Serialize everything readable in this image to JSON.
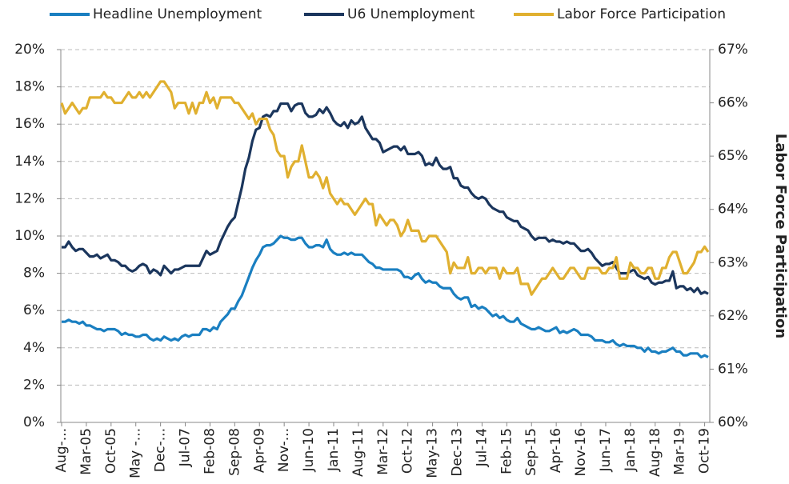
{
  "chart_data": {
    "type": "line",
    "y2_label": "Labor Force Participation",
    "categories": [
      "Aug-...",
      null,
      null,
      null,
      null,
      null,
      null,
      "Mar-05",
      null,
      null,
      null,
      null,
      null,
      null,
      "Oct-05",
      null,
      null,
      null,
      null,
      null,
      null,
      "May -...",
      null,
      null,
      null,
      null,
      null,
      null,
      "Dec-...",
      null,
      null,
      null,
      null,
      null,
      null,
      "Jul-07",
      null,
      null,
      null,
      null,
      null,
      null,
      "Feb-08",
      null,
      null,
      null,
      null,
      null,
      null,
      "Sep-08",
      null,
      null,
      null,
      null,
      null,
      null,
      "Apr-09",
      null,
      null,
      null,
      null,
      null,
      null,
      "Nov-...",
      null,
      null,
      null,
      null,
      null,
      null,
      "Jun-10",
      null,
      null,
      null,
      null,
      null,
      null,
      "Jan-11",
      null,
      null,
      null,
      null,
      null,
      null,
      "Aug-11",
      null,
      null,
      null,
      null,
      null,
      null,
      "Mar-12",
      null,
      null,
      null,
      null,
      null,
      null,
      "Oct-12",
      null,
      null,
      null,
      null,
      null,
      null,
      "May-13",
      null,
      null,
      null,
      null,
      null,
      null,
      "Dec-13",
      null,
      null,
      null,
      null,
      null,
      null,
      "Jul-14",
      null,
      null,
      null,
      null,
      null,
      null,
      "Feb-15",
      null,
      null,
      null,
      null,
      null,
      null,
      "Sep-15",
      null,
      null,
      null,
      null,
      null,
      null,
      "Apr-16",
      null,
      null,
      null,
      null,
      null,
      null,
      "Nov-16",
      null,
      null,
      null,
      null,
      null,
      null,
      "Jun-17",
      null,
      null,
      null,
      null,
      null,
      null,
      "Jan-18",
      null,
      null,
      null,
      null,
      null,
      null,
      "Aug-18",
      null,
      null,
      null,
      null,
      null,
      null,
      "Mar-19",
      null,
      null,
      null,
      null,
      null,
      null,
      "Oct-19",
      null
    ],
    "series": [
      {
        "name": "Headline Unemployment",
        "color": "#1a7fc1",
        "values": [
          5.4,
          5.4,
          5.5,
          5.4,
          5.4,
          5.3,
          5.4,
          5.2,
          5.2,
          5.1,
          5.0,
          5.0,
          4.9,
          5.0,
          5.0,
          5.0,
          4.9,
          4.7,
          4.8,
          4.7,
          4.7,
          4.6,
          4.6,
          4.7,
          4.7,
          4.5,
          4.4,
          4.5,
          4.4,
          4.6,
          4.5,
          4.4,
          4.5,
          4.4,
          4.6,
          4.7,
          4.6,
          4.7,
          4.7,
          4.7,
          5.0,
          5.0,
          4.9,
          5.1,
          5.0,
          5.4,
          5.6,
          5.8,
          6.1,
          6.1,
          6.5,
          6.8,
          7.3,
          7.8,
          8.3,
          8.7,
          9.0,
          9.4,
          9.5,
          9.5,
          9.6,
          9.8,
          10.0,
          9.9,
          9.9,
          9.8,
          9.8,
          9.9,
          9.9,
          9.6,
          9.4,
          9.4,
          9.5,
          9.5,
          9.4,
          9.8,
          9.3,
          9.1,
          9.0,
          9.0,
          9.1,
          9.0,
          9.1,
          9.0,
          9.0,
          9.0,
          8.8,
          8.6,
          8.5,
          8.3,
          8.3,
          8.2,
          8.2,
          8.2,
          8.2,
          8.2,
          8.1,
          7.8,
          7.8,
          7.7,
          7.9,
          8.0,
          7.7,
          7.5,
          7.6,
          7.5,
          7.5,
          7.3,
          7.2,
          7.2,
          7.2,
          6.9,
          6.7,
          6.6,
          6.7,
          6.7,
          6.2,
          6.3,
          6.1,
          6.2,
          6.1,
          5.9,
          5.7,
          5.8,
          5.6,
          5.7,
          5.5,
          5.4,
          5.4,
          5.6,
          5.3,
          5.2,
          5.1,
          5.0,
          5.0,
          5.1,
          5.0,
          4.9,
          4.9,
          5.0,
          5.1,
          4.8,
          4.9,
          4.8,
          4.9,
          5.0,
          4.9,
          4.7,
          4.7,
          4.7,
          4.6,
          4.4,
          4.4,
          4.4,
          4.3,
          4.3,
          4.4,
          4.2,
          4.1,
          4.2,
          4.1,
          4.1,
          4.1,
          4.0,
          4.0,
          3.8,
          4.0,
          3.8,
          3.8,
          3.7,
          3.8,
          3.8,
          3.9,
          4.0,
          3.8,
          3.8,
          3.6,
          3.6,
          3.7,
          3.7,
          3.7,
          3.5,
          3.6,
          3.5
        ]
      },
      {
        "name": "U6 Unemployment",
        "color": "#1b365d",
        "values": [
          9.4,
          9.4,
          9.7,
          9.4,
          9.2,
          9.3,
          9.3,
          9.1,
          8.9,
          8.9,
          9.0,
          8.8,
          8.9,
          9.0,
          8.7,
          8.7,
          8.6,
          8.4,
          8.4,
          8.2,
          8.1,
          8.2,
          8.4,
          8.5,
          8.4,
          8.0,
          8.2,
          8.1,
          7.9,
          8.4,
          8.2,
          8.0,
          8.2,
          8.2,
          8.3,
          8.4,
          8.4,
          8.4,
          8.4,
          8.4,
          8.8,
          9.2,
          9.0,
          9.1,
          9.2,
          9.7,
          10.1,
          10.5,
          10.8,
          11.0,
          11.8,
          12.6,
          13.6,
          14.2,
          15.1,
          15.7,
          15.8,
          16.4,
          16.5,
          16.4,
          16.7,
          16.7,
          17.1,
          17.1,
          17.1,
          16.7,
          17.0,
          17.1,
          17.1,
          16.6,
          16.4,
          16.4,
          16.5,
          16.8,
          16.6,
          16.9,
          16.6,
          16.2,
          16.0,
          15.9,
          16.1,
          15.8,
          16.2,
          16.0,
          16.1,
          16.4,
          15.8,
          15.5,
          15.2,
          15.2,
          15.0,
          14.5,
          14.6,
          14.7,
          14.8,
          14.8,
          14.6,
          14.8,
          14.4,
          14.4,
          14.4,
          14.5,
          14.3,
          13.8,
          13.9,
          13.8,
          14.2,
          13.8,
          13.6,
          13.6,
          13.7,
          13.1,
          13.1,
          12.7,
          12.6,
          12.6,
          12.3,
          12.1,
          12.0,
          12.1,
          12.0,
          11.7,
          11.5,
          11.4,
          11.3,
          11.3,
          11.0,
          10.9,
          10.8,
          10.8,
          10.5,
          10.4,
          10.3,
          10.0,
          9.8,
          9.9,
          9.9,
          9.9,
          9.7,
          9.8,
          9.7,
          9.7,
          9.6,
          9.7,
          9.6,
          9.6,
          9.4,
          9.2,
          9.2,
          9.3,
          9.1,
          8.8,
          8.6,
          8.4,
          8.5,
          8.5,
          8.6,
          8.3,
          8.0,
          8.0,
          8.0,
          8.1,
          8.2,
          7.9,
          7.8,
          7.7,
          7.8,
          7.5,
          7.4,
          7.5,
          7.5,
          7.6,
          7.6,
          8.1,
          7.2,
          7.3,
          7.3,
          7.1,
          7.2,
          7.0,
          7.2,
          6.9,
          7.0,
          6.9
        ]
      },
      {
        "name": "Labor Force Participation",
        "color": "#e0b030",
        "axis": "y2",
        "values": [
          66.0,
          65.8,
          65.9,
          66.0,
          65.9,
          65.8,
          65.9,
          65.9,
          66.1,
          66.1,
          66.1,
          66.1,
          66.2,
          66.1,
          66.1,
          66.0,
          66.0,
          66.0,
          66.1,
          66.2,
          66.1,
          66.1,
          66.2,
          66.1,
          66.2,
          66.1,
          66.2,
          66.3,
          66.4,
          66.4,
          66.3,
          66.2,
          65.9,
          66.0,
          66.0,
          66.0,
          65.8,
          66.0,
          65.8,
          66.0,
          66.0,
          66.2,
          66.0,
          66.1,
          65.9,
          66.1,
          66.1,
          66.1,
          66.1,
          66.0,
          66.0,
          65.9,
          65.8,
          65.7,
          65.8,
          65.6,
          65.7,
          65.7,
          65.7,
          65.5,
          65.4,
          65.1,
          65.0,
          65.0,
          64.6,
          64.8,
          64.9,
          64.9,
          65.2,
          64.9,
          64.6,
          64.6,
          64.7,
          64.6,
          64.4,
          64.6,
          64.3,
          64.2,
          64.1,
          64.2,
          64.1,
          64.1,
          64.0,
          63.9,
          64.0,
          64.1,
          64.2,
          64.1,
          64.1,
          63.7,
          63.9,
          63.8,
          63.7,
          63.8,
          63.8,
          63.7,
          63.5,
          63.6,
          63.8,
          63.6,
          63.6,
          63.6,
          63.4,
          63.4,
          63.5,
          63.5,
          63.5,
          63.4,
          63.3,
          63.2,
          62.8,
          63.0,
          62.9,
          62.9,
          62.9,
          63.1,
          62.8,
          62.8,
          62.9,
          62.9,
          62.8,
          62.9,
          62.9,
          62.9,
          62.7,
          62.9,
          62.8,
          62.8,
          62.8,
          62.9,
          62.6,
          62.6,
          62.6,
          62.4,
          62.5,
          62.6,
          62.7,
          62.7,
          62.8,
          62.9,
          62.8,
          62.7,
          62.7,
          62.8,
          62.9,
          62.9,
          62.8,
          62.7,
          62.7,
          62.9,
          62.9,
          62.9,
          62.9,
          62.8,
          62.8,
          62.9,
          62.9,
          63.1,
          62.7,
          62.7,
          62.7,
          63.0,
          62.9,
          62.9,
          62.8,
          62.8,
          62.9,
          62.9,
          62.7,
          62.7,
          62.9,
          62.9,
          63.1,
          63.2,
          63.2,
          63.0,
          62.8,
          62.8,
          62.9,
          63.0,
          63.2,
          63.2,
          63.3,
          63.2
        ]
      }
    ],
    "ylim": [
      0,
      20
    ],
    "yticks": [
      {
        "value": 0,
        "label": "0%"
      },
      {
        "value": 2,
        "label": "2%"
      },
      {
        "value": 4,
        "label": "4%"
      },
      {
        "value": 6,
        "label": "6%"
      },
      {
        "value": 8,
        "label": "8%"
      },
      {
        "value": 10,
        "label": "10%"
      },
      {
        "value": 12,
        "label": "12%"
      },
      {
        "value": 14,
        "label": "14%"
      },
      {
        "value": 16,
        "label": "16%"
      },
      {
        "value": 18,
        "label": "18%"
      },
      {
        "value": 20,
        "label": "20%"
      }
    ],
    "y2lim": [
      60,
      67
    ],
    "y2ticks": [
      {
        "value": 60,
        "label": "60%"
      },
      {
        "value": 61,
        "label": "61%"
      },
      {
        "value": 62,
        "label": "62%"
      },
      {
        "value": 63,
        "label": "63%"
      },
      {
        "value": 64,
        "label": "64%"
      },
      {
        "value": 65,
        "label": "65%"
      },
      {
        "value": 66,
        "label": "66%"
      },
      {
        "value": 67,
        "label": "67%"
      }
    ],
    "grid": true,
    "legend": "top"
  }
}
